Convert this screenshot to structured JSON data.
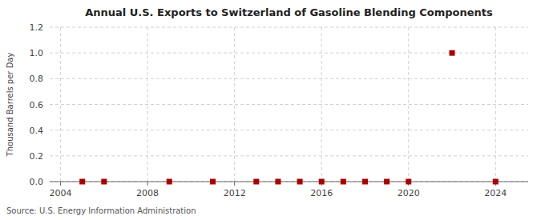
{
  "chart_data": {
    "type": "scatter",
    "title": "Annual U.S. Exports to Switzerland of Gasoline Blending Components",
    "ylabel": "Thousand Barrels per Day",
    "annotations": [
      "Source: U.S. Energy Information Administration"
    ],
    "x": [
      2005,
      2006,
      2009,
      2011,
      2013,
      2014,
      2015,
      2016,
      2017,
      2018,
      2019,
      2020,
      2022,
      2024
    ],
    "values": [
      0.0,
      0.0,
      0.0,
      0.0,
      0.0,
      0.0,
      0.0,
      0.0,
      0.0,
      0.0,
      0.0,
      0.0,
      1.0,
      0.0
    ],
    "color": "#aa0000",
    "marker": "square",
    "xlim": [
      2003.5,
      2025.5
    ],
    "ylim": [
      0,
      1.2
    ],
    "xticks": [
      2004,
      2008,
      2012,
      2016,
      2020,
      2024
    ],
    "yticks": [
      {
        "value": 0,
        "label": "0.0"
      },
      0.2,
      0.4,
      0.6,
      0.8,
      {
        "value": 1,
        "label": "1.0"
      },
      1.2
    ],
    "grid": true
  }
}
